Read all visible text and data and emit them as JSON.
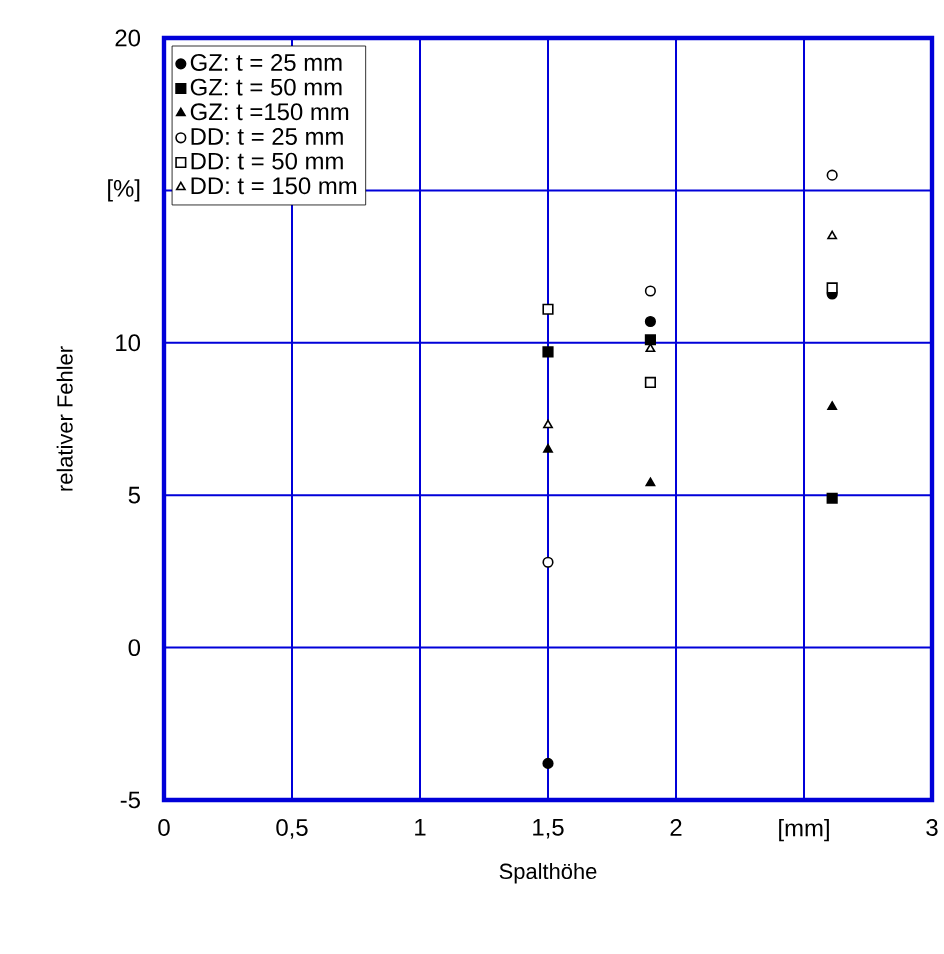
{
  "chart_data": {
    "type": "scatter",
    "xlabel": "Spalthöhe",
    "ylabel": "relativer Fehler",
    "x": [
      1.5,
      1.9,
      2.61
    ],
    "series": [
      {
        "name": "GZ: t = 25 mm",
        "color": "#000000",
        "marker": "circle",
        "values": [
          -3.8,
          10.7,
          11.6
        ]
      },
      {
        "name": "GZ: t = 50 mm",
        "color": "#000000",
        "marker": "square",
        "values": [
          9.7,
          10.1,
          4.9
        ]
      },
      {
        "name": "GZ: t =150 mm",
        "color": "#000000",
        "marker": "triangle",
        "values": [
          6.5,
          5.4,
          7.9
        ]
      },
      {
        "name": "DD: t = 25 mm",
        "color": "#ffffff",
        "marker": "circle",
        "values": [
          2.8,
          11.7,
          15.5
        ]
      },
      {
        "name": "DD: t = 50 mm",
        "color": "#ffffff",
        "marker": "square",
        "values": [
          11.1,
          8.7,
          11.8
        ]
      },
      {
        "name": "DD: t = 150 mm",
        "color": "#ffffff",
        "marker": "triangle",
        "values": [
          7.3,
          9.8,
          13.5
        ]
      }
    ],
    "xlim": [
      0,
      3
    ],
    "ylim": [
      -5,
      20
    ],
    "xticks": [
      0,
      {
        "value": 0.5,
        "label": "0,5"
      },
      1,
      {
        "value": 1.5,
        "label": "1,5"
      },
      2,
      {
        "value": 2.5,
        "label": "[mm]"
      },
      3
    ],
    "yticks": [
      -5,
      0,
      5,
      10,
      {
        "value": 15,
        "label": "[%]"
      },
      20
    ],
    "grid": true,
    "legend": "top left"
  }
}
